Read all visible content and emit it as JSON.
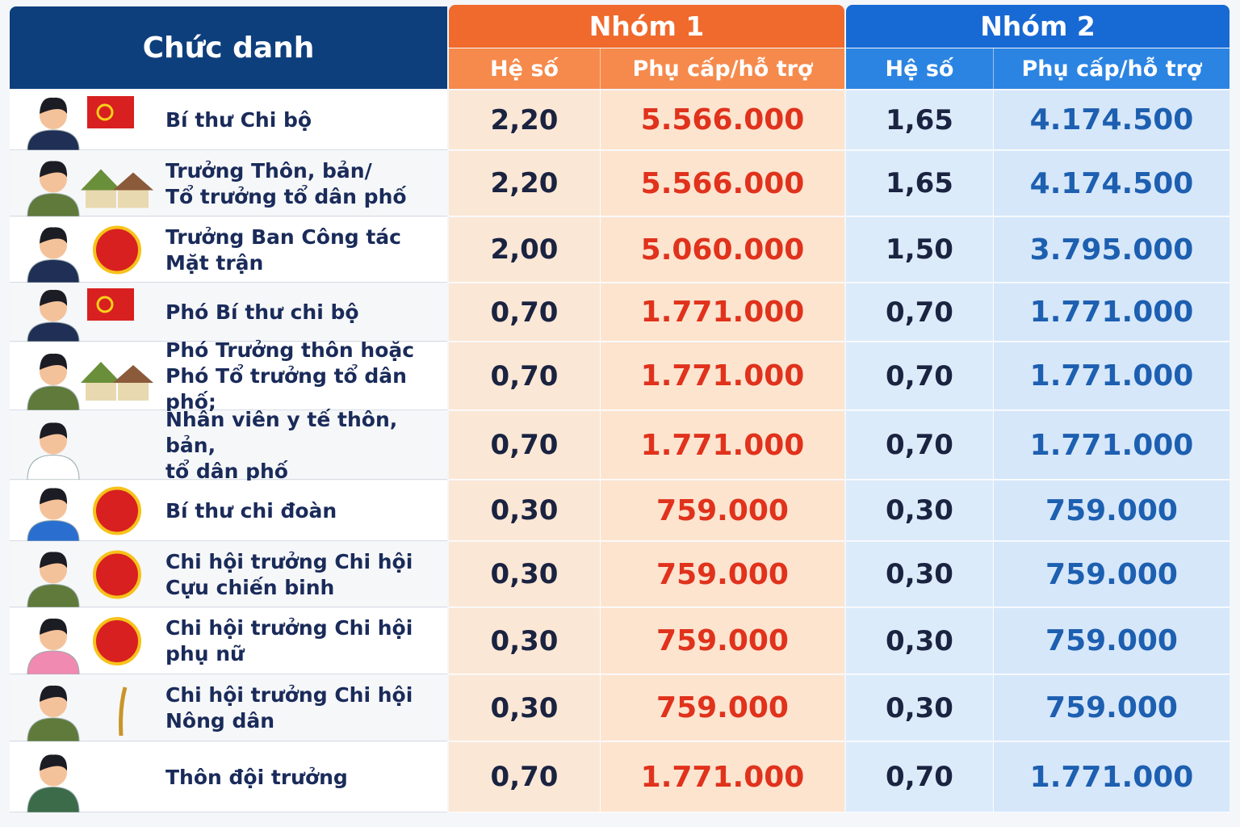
{
  "header": {
    "title": "Chức danh",
    "groups": [
      {
        "name": "Nhóm 1",
        "columns": [
          "Hệ số",
          "Phụ cấp/hỗ trợ"
        ]
      },
      {
        "name": "Nhóm 2",
        "columns": [
          "Hệ số",
          "Phụ cấp/hỗ trợ"
        ]
      }
    ]
  },
  "table": {
    "rows": [
      {
        "title": [
          "Bí thư Chi bộ"
        ],
        "cells": [
          "2,20",
          "5.566.000",
          "1,65",
          "4.174.500"
        ]
      },
      {
        "title": [
          "Trưởng Thôn, bản/",
          "Tổ trưởng tổ dân phố"
        ],
        "cells": [
          "2,20",
          "5.566.000",
          "1,65",
          "4.174.500"
        ]
      },
      {
        "title": [
          "Trưởng Ban Công tác",
          "Mặt trận"
        ],
        "cells": [
          "2,00",
          "5.060.000",
          "1,50",
          "3.795.000"
        ]
      },
      {
        "title": [
          "Phó Bí thư chi bộ"
        ],
        "cells": [
          "0,70",
          "1.771.000",
          "0,70",
          "1.771.000"
        ]
      },
      {
        "title": [
          "Phó Trưởng thôn hoặc",
          "Phó Tổ trưởng tổ dân phố;"
        ],
        "cells": [
          "0,70",
          "1.771.000",
          "0,70",
          "1.771.000"
        ]
      },
      {
        "title": [
          "Nhân viên y tế thôn, bản,",
          "tổ dân phố"
        ],
        "cells": [
          "0,70",
          "1.771.000",
          "0,70",
          "1.771.000"
        ]
      },
      {
        "title": [
          "Bí thư chi đoàn"
        ],
        "cells": [
          "0,30",
          "759.000",
          "0,30",
          "759.000"
        ]
      },
      {
        "title": [
          "Chi hội trưởng Chi hội",
          "Cựu chiến binh"
        ],
        "cells": [
          "0,30",
          "759.000",
          "0,30",
          "759.000"
        ]
      },
      {
        "title": [
          "Chi hội trưởng Chi hội",
          "phụ nữ"
        ],
        "cells": [
          "0,30",
          "759.000",
          "0,30",
          "759.000"
        ]
      },
      {
        "title": [
          "Chi hội trưởng Chi hội",
          "Nông dân"
        ],
        "cells": [
          "0,30",
          "759.000",
          "0,30",
          "759.000"
        ]
      },
      {
        "title": [
          "Thôn đội trưởng"
        ],
        "cells": [
          "0,70",
          "1.771.000",
          "0,70",
          "1.771.000"
        ]
      }
    ]
  }
}
